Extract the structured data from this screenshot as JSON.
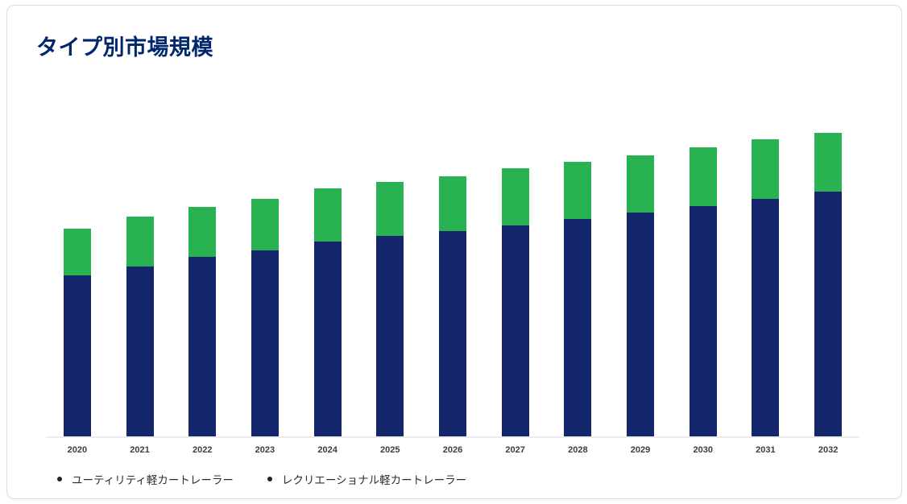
{
  "card": {
    "title": "タイプ別市場規模"
  },
  "colors": {
    "title": "#00266b",
    "utility": "#13256b",
    "recreational": "#28b251",
    "axis_line": "#ececec",
    "legend_dot": "#222222"
  },
  "legend": {
    "items": [
      {
        "label": "ユーティリティ軽カートレーラー"
      },
      {
        "label": "レクリエーショナル軽カートレーラー"
      }
    ]
  },
  "chart_data": {
    "type": "bar",
    "stacked": true,
    "title": "タイプ別市場規模",
    "categories": [
      "2020",
      "2021",
      "2022",
      "2023",
      "2024",
      "2025",
      "2026",
      "2027",
      "2028",
      "2029",
      "2030",
      "2031",
      "2032"
    ],
    "series": [
      {
        "name": "ユーティリティ軽カートレーラー",
        "color": "#13256b",
        "values": [
          200,
          211,
          223,
          231,
          242,
          249,
          255,
          262,
          270,
          278,
          286,
          295,
          304
        ]
      },
      {
        "name": "レクリエーショナル軽カートレーラー",
        "color": "#28b251",
        "values": [
          58,
          62,
          62,
          64,
          66,
          67,
          68,
          71,
          71,
          71,
          73,
          74,
          73
        ]
      }
    ],
    "totals": [
      258,
      273,
      285,
      295,
      308,
      316,
      323,
      333,
      341,
      349,
      359,
      369,
      377
    ],
    "xlabel": "",
    "ylabel": "",
    "ylim": [
      0,
      440
    ],
    "y_axis_visible": false,
    "grid": false,
    "legend_position": "bottom-left"
  }
}
